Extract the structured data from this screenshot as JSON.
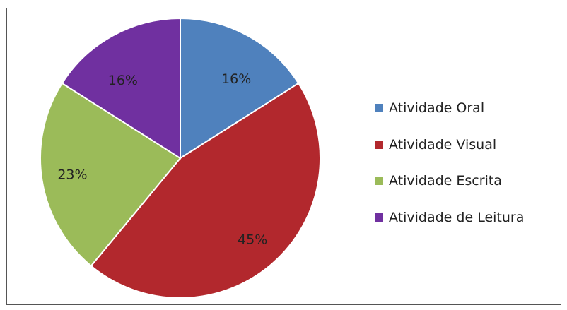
{
  "chart_data": {
    "type": "pie",
    "title": "",
    "legend_position": "right",
    "slices": [
      {
        "name": "Atividade Oral",
        "value": 16,
        "label": "16%",
        "color": "#4f81bd"
      },
      {
        "name": "Atividade Visual",
        "value": 45,
        "label": "45%",
        "color": "#b2282d"
      },
      {
        "name": "Atividade Escrita",
        "value": 23,
        "label": "23%",
        "color": "#9bbb59"
      },
      {
        "name": "Atividade de Leitura",
        "value": 16,
        "label": "16%",
        "color": "#7030a0"
      }
    ]
  }
}
